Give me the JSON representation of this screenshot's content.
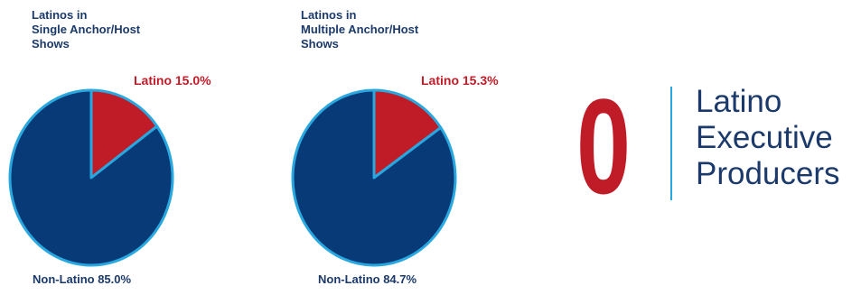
{
  "chart_data": [
    {
      "type": "pie",
      "title": "Latinos in\nSingle Anchor/Host\nShows",
      "slices": [
        {
          "name": "Latino",
          "value": 15.0,
          "label": "Latino 15.0%",
          "color": "#c01c28"
        },
        {
          "name": "Non-Latino",
          "value": 85.0,
          "label": "Non-Latino 85.0%",
          "color": "#083a78"
        }
      ],
      "edge_color": "#29a8e0"
    },
    {
      "type": "pie",
      "title": "Latinos in\nMultiple Anchor/Host\nShows",
      "slices": [
        {
          "name": "Latino",
          "value": 15.3,
          "label": "Latino 15.3%",
          "color": "#c01c28"
        },
        {
          "name": "Non-Latino",
          "value": 84.7,
          "label": "Non-Latino 84.7%",
          "color": "#083a78"
        }
      ],
      "edge_color": "#29a8e0"
    }
  ],
  "highlight": {
    "number": "0",
    "lines": [
      "Latino",
      "Executive",
      "Producers"
    ],
    "number_color": "#c01c28",
    "text_color": "#1b3a6b",
    "divider_color": "#29a8e0"
  }
}
